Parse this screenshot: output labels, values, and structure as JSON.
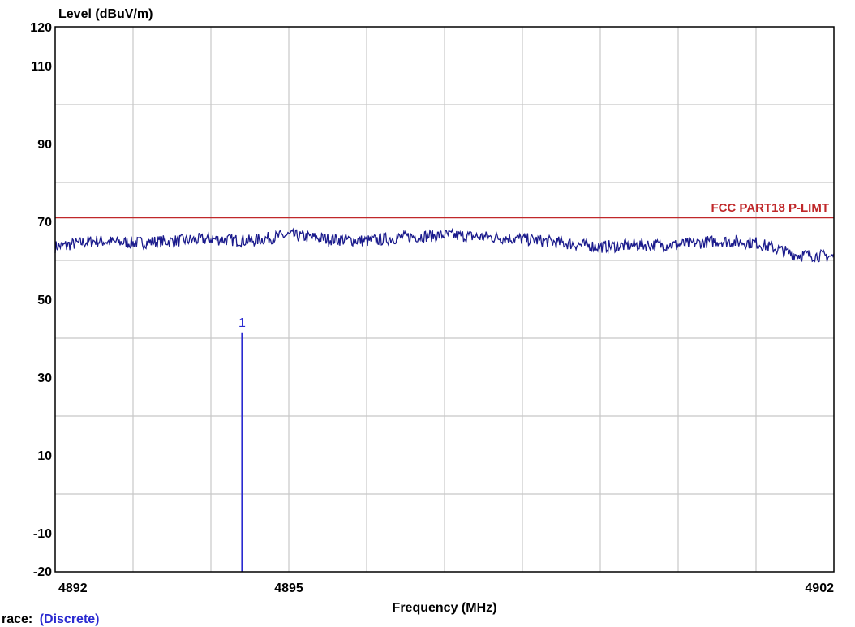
{
  "chart_data": {
    "type": "line",
    "ylabel": "Level (dBuV/m)",
    "xlabel": "Frequency (MHz)",
    "xlim": [
      4892,
      4902
    ],
    "ylim": [
      -20,
      120
    ],
    "x_ticks": [
      4892,
      4895,
      4902
    ],
    "y_ticks": [
      120,
      110,
      90,
      70,
      50,
      30,
      10,
      -10,
      -20
    ],
    "grid": true,
    "limit_line": {
      "name": "FCC PART18 P-LIMT",
      "value": 71,
      "color": "#c0282a"
    },
    "trace": {
      "color": "#1a1a8c",
      "x": [
        4892.0,
        4892.5,
        4893.0,
        4893.5,
        4894.0,
        4894.5,
        4895.0,
        4895.5,
        4896.0,
        4896.5,
        4897.0,
        4897.5,
        4898.0,
        4898.5,
        4899.0,
        4899.5,
        4900.0,
        4900.5,
        4901.0,
        4901.5,
        4902.0
      ],
      "y": [
        63.5,
        65.0,
        64.5,
        65.0,
        65.5,
        65.0,
        66.5,
        65.5,
        65.0,
        66.0,
        66.5,
        66.0,
        65.5,
        64.5,
        63.5,
        64.0,
        64.0,
        65.0,
        64.5,
        61.5,
        61.0
      ]
    },
    "markers": [
      {
        "label": "1",
        "x": 4894.4,
        "y": 41.5,
        "color": "#2a2ad0"
      }
    ]
  },
  "footer": {
    "trace_label": "race:",
    "trace_value": "(Discrete)",
    "trace_value_color": "#2a2ad0"
  }
}
